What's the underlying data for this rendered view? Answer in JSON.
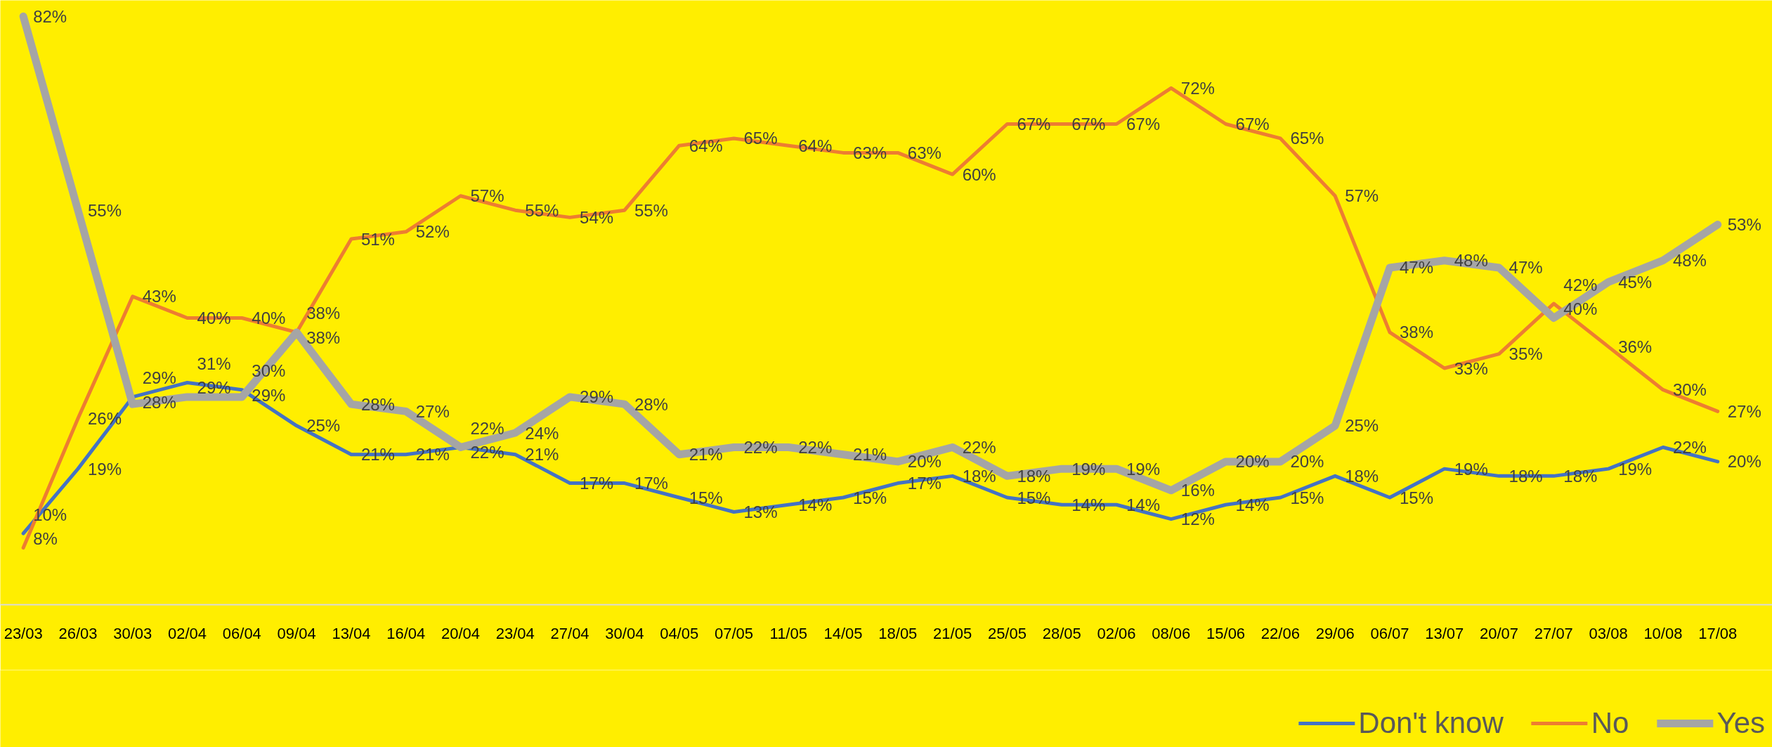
{
  "chart_data": {
    "type": "line",
    "categories": [
      "23/03",
      "26/03",
      "30/03",
      "02/04",
      "06/04",
      "09/04",
      "13/04",
      "16/04",
      "20/04",
      "23/04",
      "27/04",
      "30/04",
      "04/05",
      "07/05",
      "11/05",
      "14/05",
      "18/05",
      "21/05",
      "25/05",
      "28/05",
      "02/06",
      "08/06",
      "15/06",
      "22/06",
      "29/06",
      "06/07",
      "13/07",
      "20/07",
      "27/07",
      "03/08",
      "10/08",
      "17/08"
    ],
    "series": [
      {
        "name": "Don't know",
        "color": "#4472c4",
        "values": [
          10,
          19,
          29,
          31,
          30,
          25,
          21,
          21,
          22,
          21,
          17,
          17,
          15,
          13,
          14,
          15,
          17,
          18,
          15,
          14,
          14,
          12,
          14,
          15,
          18,
          15,
          19,
          18,
          18,
          19,
          22,
          20
        ],
        "value_labels": [
          "10%",
          "19%",
          "29%",
          "31%",
          "30%",
          "25%",
          "21%",
          "21%",
          "22%",
          "21%",
          "17%",
          "17%",
          "15%",
          "13%",
          "14%",
          "15%",
          "17%",
          "18%",
          "15%",
          "14%",
          "14%",
          "12%",
          "14%",
          "15%",
          "18%",
          "15%",
          "19%",
          "18%",
          "18%",
          "19%",
          "22%",
          "20%"
        ]
      },
      {
        "name": "No",
        "color": "#ed7d31",
        "values": [
          8,
          26,
          43,
          40,
          40,
          38,
          51,
          52,
          57,
          55,
          54,
          55,
          64,
          65,
          64,
          63,
          63,
          60,
          67,
          67,
          67,
          72,
          67,
          65,
          57,
          38,
          33,
          35,
          42,
          36,
          30,
          27
        ],
        "value_labels": [
          "8%",
          "26%",
          "43%",
          "40%",
          "40%",
          "38%",
          "51%",
          "52%",
          "57%",
          "55%",
          "54%",
          "55%",
          "64%",
          "65%",
          "64%",
          "63%",
          "63%",
          "60%",
          "67%",
          "67%",
          "67%",
          "72%",
          "67%",
          "65%",
          "57%",
          "38%",
          "33%",
          "35%",
          "42%",
          "36%",
          "30%",
          "27%"
        ]
      },
      {
        "name": "Yes",
        "color": "#a5a5a5",
        "values": [
          82,
          55,
          28,
          29,
          29,
          38,
          28,
          27,
          22,
          24,
          29,
          28,
          21,
          22,
          22,
          21,
          20,
          22,
          18,
          19,
          19,
          16,
          20,
          20,
          25,
          47,
          48,
          47,
          40,
          45,
          48,
          53
        ],
        "value_labels": [
          "82%",
          "55%",
          "28%",
          "29%",
          "29%",
          "38%",
          "28%",
          "27%",
          "22%",
          "24%",
          "29%",
          "28%",
          "21%",
          "22%",
          "22%",
          "21%",
          "20%",
          "22%",
          "18%",
          "19%",
          "19%",
          "16%",
          "20%",
          "20%",
          "25%",
          "47%",
          "48%",
          "47%",
          "40%",
          "45%",
          "48%",
          "53%"
        ]
      }
    ],
    "legend": "bottom right",
    "grid": false,
    "tick_labels": "x",
    "marker": "none",
    "line_style": "solid"
  }
}
